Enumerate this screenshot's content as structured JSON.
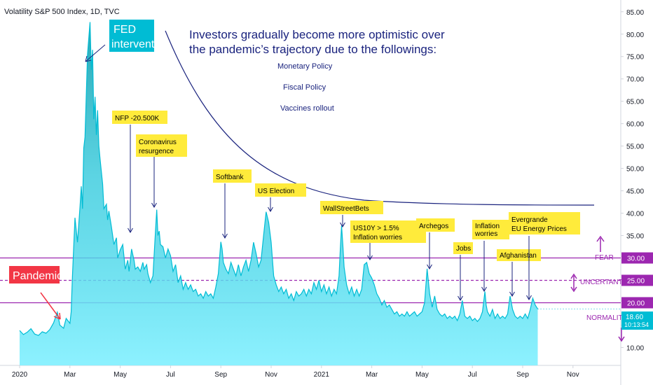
{
  "chart_data": {
    "type": "area",
    "title": "Volatility S&P 500 Index, 1D, TVC",
    "ylim": [
      6,
      87
    ],
    "xlim": [
      0,
      21.0
    ],
    "y_ticks": [
      10,
      15,
      20,
      25,
      30,
      35,
      40,
      45,
      50,
      55,
      60,
      65,
      70,
      75,
      80,
      85
    ],
    "y_tick_labels": [
      "10.00",
      "15.00",
      "20.00",
      "25.00",
      "30.00",
      "35.00",
      "40.00",
      "45.00",
      "50.00",
      "55.00",
      "60.00",
      "65.00",
      "70.00",
      "75.00",
      "80.00",
      "85.00"
    ],
    "x_ticks": [
      {
        "m": 0,
        "label": "2020"
      },
      {
        "m": 2,
        "label": "Mar"
      },
      {
        "m": 4,
        "label": "May"
      },
      {
        "m": 6,
        "label": "Jul"
      },
      {
        "m": 8,
        "label": "Sep"
      },
      {
        "m": 10,
        "label": "Nov"
      },
      {
        "m": 12,
        "label": "2021"
      },
      {
        "m": 14,
        "label": "Mar"
      },
      {
        "m": 16,
        "label": "May"
      },
      {
        "m": 18,
        "label": "Jul"
      },
      {
        "m": 20,
        "label": "Sep"
      },
      {
        "m": 22,
        "label": "Nov"
      }
    ],
    "series": [
      {
        "values": [
          [
            0.0,
            13.8
          ],
          [
            0.15,
            12.9
          ],
          [
            0.3,
            13.4
          ],
          [
            0.45,
            14.2
          ],
          [
            0.6,
            13.0
          ],
          [
            0.75,
            12.7
          ],
          [
            0.9,
            13.5
          ],
          [
            1.05,
            13.2
          ],
          [
            1.2,
            14.0
          ],
          [
            1.35,
            15.5
          ],
          [
            1.5,
            17.9
          ],
          [
            1.6,
            15.0
          ],
          [
            1.75,
            14.3
          ],
          [
            1.85,
            16.5
          ],
          [
            2.0,
            15.4
          ],
          [
            2.05,
            18.0
          ],
          [
            2.1,
            26.0
          ],
          [
            2.2,
            39.0
          ],
          [
            2.3,
            33.5
          ],
          [
            2.4,
            41.5
          ],
          [
            2.45,
            46.0
          ],
          [
            2.5,
            41.0
          ],
          [
            2.55,
            54.5
          ],
          [
            2.6,
            57.0
          ],
          [
            2.7,
            75.5
          ],
          [
            2.8,
            82.7
          ],
          [
            2.85,
            72.0
          ],
          [
            2.9,
            76.5
          ],
          [
            2.95,
            61.0
          ],
          [
            3.0,
            66.0
          ],
          [
            3.05,
            57.5
          ],
          [
            3.1,
            63.0
          ],
          [
            3.15,
            55.0
          ],
          [
            3.2,
            52.0
          ],
          [
            3.3,
            46.5
          ],
          [
            3.35,
            41.0
          ],
          [
            3.45,
            42.0
          ],
          [
            3.5,
            38.5
          ],
          [
            3.55,
            40.5
          ],
          [
            3.65,
            37.0
          ],
          [
            3.75,
            33.0
          ],
          [
            3.85,
            34.5
          ],
          [
            3.9,
            30.0
          ],
          [
            4.0,
            31.8
          ],
          [
            4.1,
            33.0
          ],
          [
            4.2,
            27.5
          ],
          [
            4.3,
            29.5
          ],
          [
            4.35,
            27.0
          ],
          [
            4.45,
            32.0
          ],
          [
            4.55,
            29.5
          ],
          [
            4.6,
            27.5
          ],
          [
            4.7,
            28.0
          ],
          [
            4.8,
            27.0
          ],
          [
            4.9,
            29.0
          ],
          [
            4.95,
            27.5
          ],
          [
            5.05,
            28.5
          ],
          [
            5.1,
            26.5
          ],
          [
            5.2,
            24.5
          ],
          [
            5.3,
            26.0
          ],
          [
            5.4,
            36.0
          ],
          [
            5.45,
            40.8
          ],
          [
            5.5,
            35.0
          ],
          [
            5.55,
            36.0
          ],
          [
            5.6,
            33.0
          ],
          [
            5.7,
            32.5
          ],
          [
            5.8,
            30.0
          ],
          [
            5.9,
            32.0
          ],
          [
            6.0,
            30.5
          ],
          [
            6.1,
            27.0
          ],
          [
            6.2,
            28.5
          ],
          [
            6.3,
            24.5
          ],
          [
            6.4,
            26.0
          ],
          [
            6.5,
            23.0
          ],
          [
            6.6,
            24.5
          ],
          [
            6.7,
            23.0
          ],
          [
            6.8,
            24.0
          ],
          [
            6.9,
            22.5
          ],
          [
            7.0,
            23.0
          ],
          [
            7.1,
            21.5
          ],
          [
            7.2,
            22.0
          ],
          [
            7.3,
            21.0
          ],
          [
            7.4,
            22.5
          ],
          [
            7.5,
            21.5
          ],
          [
            7.6,
            22.0
          ],
          [
            7.7,
            21.0
          ],
          [
            7.8,
            23.5
          ],
          [
            7.9,
            26.5
          ],
          [
            8.0,
            33.6
          ],
          [
            8.05,
            32.0
          ],
          [
            8.1,
            29.0
          ],
          [
            8.2,
            27.5
          ],
          [
            8.3,
            26.5
          ],
          [
            8.4,
            29.0
          ],
          [
            8.5,
            27.5
          ],
          [
            8.6,
            26.0
          ],
          [
            8.7,
            28.5
          ],
          [
            8.8,
            26.0
          ],
          [
            8.9,
            28.0
          ],
          [
            9.0,
            29.5
          ],
          [
            9.1,
            27.0
          ],
          [
            9.2,
            29.5
          ],
          [
            9.3,
            33.5
          ],
          [
            9.4,
            31.0
          ],
          [
            9.5,
            28.0
          ],
          [
            9.6,
            29.5
          ],
          [
            9.7,
            35.0
          ],
          [
            9.8,
            40.3
          ],
          [
            9.9,
            38.0
          ],
          [
            10.0,
            33.5
          ],
          [
            10.1,
            26.0
          ],
          [
            10.2,
            24.0
          ],
          [
            10.3,
            22.5
          ],
          [
            10.4,
            23.5
          ],
          [
            10.5,
            22.0
          ],
          [
            10.6,
            23.0
          ],
          [
            10.7,
            21.0
          ],
          [
            10.8,
            22.0
          ],
          [
            10.9,
            20.5
          ],
          [
            11.0,
            22.5
          ],
          [
            11.1,
            21.5
          ],
          [
            11.2,
            22.0
          ],
          [
            11.3,
            23.0
          ],
          [
            11.4,
            21.5
          ],
          [
            11.5,
            23.0
          ],
          [
            11.6,
            22.0
          ],
          [
            11.7,
            24.5
          ],
          [
            11.8,
            23.0
          ],
          [
            11.9,
            25.0
          ],
          [
            12.0,
            22.5
          ],
          [
            12.1,
            24.0
          ],
          [
            12.2,
            22.0
          ],
          [
            12.3,
            23.5
          ],
          [
            12.4,
            21.5
          ],
          [
            12.5,
            23.0
          ],
          [
            12.6,
            22.0
          ],
          [
            12.7,
            26.0
          ],
          [
            12.75,
            32.0
          ],
          [
            12.8,
            37.2
          ],
          [
            12.85,
            33.0
          ],
          [
            12.9,
            28.0
          ],
          [
            13.0,
            24.0
          ],
          [
            13.1,
            22.0
          ],
          [
            13.2,
            23.5
          ],
          [
            13.3,
            21.5
          ],
          [
            13.4,
            23.0
          ],
          [
            13.5,
            21.5
          ],
          [
            13.6,
            23.0
          ],
          [
            13.7,
            28.5
          ],
          [
            13.8,
            29.0
          ],
          [
            13.9,
            26.5
          ],
          [
            14.0,
            25.5
          ],
          [
            14.1,
            24.0
          ],
          [
            14.2,
            22.0
          ],
          [
            14.3,
            21.0
          ],
          [
            14.4,
            19.5
          ],
          [
            14.5,
            20.5
          ],
          [
            14.6,
            19.0
          ],
          [
            14.7,
            19.5
          ],
          [
            14.8,
            18.5
          ],
          [
            14.9,
            17.5
          ],
          [
            15.0,
            18.0
          ],
          [
            15.1,
            17.0
          ],
          [
            15.2,
            17.5
          ],
          [
            15.3,
            17.0
          ],
          [
            15.4,
            18.0
          ],
          [
            15.5,
            17.0
          ],
          [
            15.6,
            17.5
          ],
          [
            15.7,
            18.0
          ],
          [
            15.8,
            17.0
          ],
          [
            15.9,
            17.5
          ],
          [
            16.0,
            18.0
          ],
          [
            16.1,
            20.0
          ],
          [
            16.2,
            27.6
          ],
          [
            16.3,
            22.0
          ],
          [
            16.4,
            19.0
          ],
          [
            16.5,
            21.5
          ],
          [
            16.6,
            18.5
          ],
          [
            16.7,
            17.5
          ],
          [
            16.8,
            17.0
          ],
          [
            16.9,
            17.5
          ],
          [
            17.0,
            16.5
          ],
          [
            17.1,
            17.0
          ],
          [
            17.2,
            16.5
          ],
          [
            17.3,
            17.0
          ],
          [
            17.4,
            16.0
          ],
          [
            17.5,
            17.5
          ],
          [
            17.6,
            20.5
          ],
          [
            17.7,
            17.0
          ],
          [
            17.8,
            16.5
          ],
          [
            17.9,
            17.0
          ],
          [
            18.0,
            16.0
          ],
          [
            18.1,
            16.5
          ],
          [
            18.2,
            15.8
          ],
          [
            18.3,
            16.5
          ],
          [
            18.4,
            18.0
          ],
          [
            18.5,
            22.5
          ],
          [
            18.55,
            19.5
          ],
          [
            18.6,
            18.0
          ],
          [
            18.7,
            17.0
          ],
          [
            18.8,
            18.5
          ],
          [
            18.9,
            16.5
          ],
          [
            19.0,
            17.5
          ],
          [
            19.1,
            16.5
          ],
          [
            19.2,
            17.0
          ],
          [
            19.3,
            16.5
          ],
          [
            19.4,
            17.5
          ],
          [
            19.5,
            21.5
          ],
          [
            19.6,
            18.5
          ],
          [
            19.7,
            17.0
          ],
          [
            19.8,
            16.5
          ],
          [
            19.9,
            17.0
          ],
          [
            20.0,
            16.5
          ],
          [
            20.1,
            17.5
          ],
          [
            20.2,
            16.5
          ],
          [
            20.3,
            18.5
          ],
          [
            20.4,
            21.0
          ],
          [
            20.5,
            19.5
          ],
          [
            20.6,
            18.6
          ]
        ]
      }
    ],
    "last_value": "18.60",
    "countdown": "10:13:54",
    "levels": [
      {
        "value": 30,
        "label": "30.00",
        "zone": "FEAR",
        "color": "#9c27b0",
        "style": "solid"
      },
      {
        "value": 25,
        "label": "25.00",
        "zone": "UNCERTANTY",
        "color": "#9c27b0",
        "style": "dashed"
      },
      {
        "value": 20,
        "label": "20.00",
        "zone": "NORMALITY",
        "color": "#9c27b0",
        "style": "solid"
      }
    ],
    "colors": {
      "line": "#00bcd4",
      "fill_top": "#0097a7",
      "fill_bottom": "#80f0ff",
      "level": "#9c27b0",
      "curve": "#1a237e"
    }
  },
  "annotations": {
    "fed": "FED\nintervention",
    "pandemic": "Pandemic",
    "headline_1": "Investors gradually become more optimistic over",
    "headline_2": "the pandemic’s trajectory due to the followings:",
    "reasons": [
      "Monetary Policy",
      "Fiscal Policy",
      "Vaccines rollout"
    ],
    "events": [
      {
        "id": "nfp",
        "lines": [
          "NFP -20.500K"
        ]
      },
      {
        "id": "coronavirus",
        "lines": [
          "Coronavirus",
          "resurgence"
        ]
      },
      {
        "id": "softbank",
        "lines": [
          "Softbank"
        ]
      },
      {
        "id": "us-election",
        "lines": [
          "US Election"
        ]
      },
      {
        "id": "wallstreetbets",
        "lines": [
          "WallStreetBets"
        ]
      },
      {
        "id": "us10y",
        "lines": [
          "US10Y > 1.5%",
          "Inflation worries"
        ]
      },
      {
        "id": "archegos",
        "lines": [
          "Archegos"
        ]
      },
      {
        "id": "jobs",
        "lines": [
          "Jobs"
        ]
      },
      {
        "id": "inflation",
        "lines": [
          "Inflation",
          "worries"
        ]
      },
      {
        "id": "afghanistan",
        "lines": [
          "Afghanistan"
        ]
      },
      {
        "id": "evergrande",
        "lines": [
          "Evergrande",
          "EU Energy Prices"
        ]
      }
    ]
  }
}
